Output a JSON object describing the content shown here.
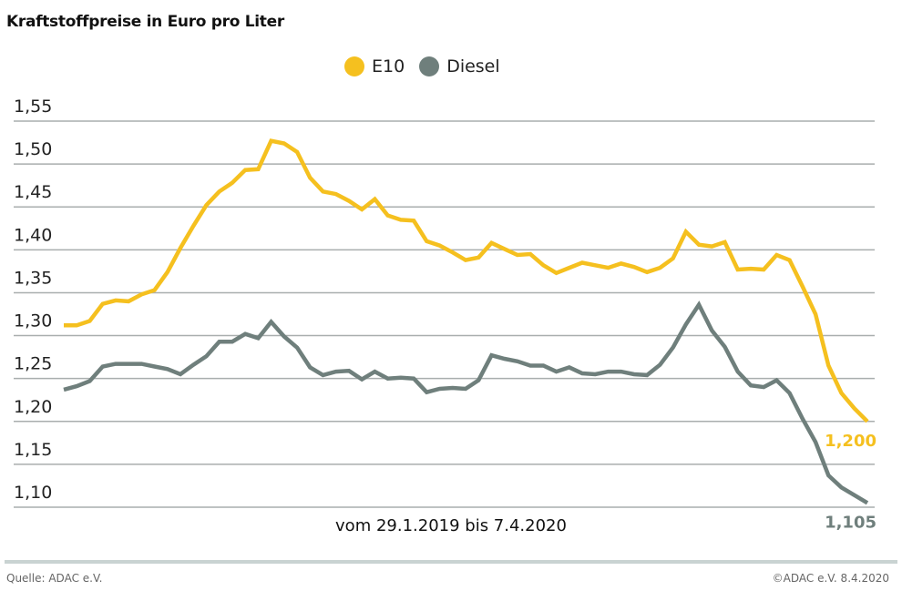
{
  "header": {
    "title": "Kraftstoffpreise in Euro pro Liter"
  },
  "legend": {
    "placement": "top-center",
    "items": [
      {
        "label": "E10",
        "color": "#f5c01f",
        "icon": "circle-dot"
      },
      {
        "label": "Diesel",
        "color": "#6f7f7c",
        "icon": "circle-dot"
      }
    ]
  },
  "subtitle": "vom 29.1.2019 bis 7.4.2020",
  "footer": {
    "source": "Quelle: ADAC e.V.",
    "copyright": "©ADAC e.V. 8.4.2020"
  },
  "colors": {
    "e10": "#f5c01f",
    "diesel": "#6f7f7c",
    "grid": "#a9aeae",
    "footer_rule": "#c9d3d2"
  },
  "chart_data": {
    "type": "line",
    "title": "Kraftstoffpreise in Euro pro Liter",
    "xlabel": "vom 29.1.2019 bis 7.4.2020",
    "ylabel": "Euro pro Liter",
    "x_start": "29.1.2019",
    "x_end": "7.4.2020",
    "x_unit": "week",
    "ylim": [
      1.1,
      1.55
    ],
    "yticks": [
      1.1,
      1.15,
      1.2,
      1.25,
      1.3,
      1.35,
      1.4,
      1.45,
      1.5,
      1.55
    ],
    "ytick_labels": [
      "1,10",
      "1,15",
      "1,20",
      "1,25",
      "1,30",
      "1,35",
      "1,40",
      "1,45",
      "1,50",
      "1,55"
    ],
    "grid": true,
    "legend_position": "top-center",
    "series": [
      {
        "name": "E10",
        "color": "#f5c01f",
        "end_label": "1,200",
        "values": [
          1.312,
          1.312,
          1.317,
          1.337,
          1.341,
          1.34,
          1.348,
          1.353,
          1.374,
          1.402,
          1.428,
          1.452,
          1.468,
          1.478,
          1.493,
          1.494,
          1.527,
          1.524,
          1.514,
          1.484,
          1.468,
          1.465,
          1.457,
          1.447,
          1.459,
          1.44,
          1.435,
          1.434,
          1.41,
          1.405,
          1.397,
          1.388,
          1.391,
          1.408,
          1.401,
          1.394,
          1.395,
          1.382,
          1.373,
          1.379,
          1.385,
          1.382,
          1.379,
          1.384,
          1.38,
          1.374,
          1.379,
          1.39,
          1.421,
          1.406,
          1.404,
          1.409,
          1.377,
          1.378,
          1.377,
          1.394,
          1.388,
          1.357,
          1.325,
          1.265,
          1.233,
          1.215,
          1.2
        ]
      },
      {
        "name": "Diesel",
        "color": "#6f7f7c",
        "end_label": "1,105",
        "values": [
          1.237,
          1.241,
          1.247,
          1.264,
          1.267,
          1.267,
          1.267,
          1.264,
          1.261,
          1.255,
          1.266,
          1.276,
          1.293,
          1.293,
          1.302,
          1.297,
          1.316,
          1.299,
          1.286,
          1.263,
          1.254,
          1.258,
          1.259,
          1.249,
          1.258,
          1.25,
          1.251,
          1.25,
          1.234,
          1.238,
          1.239,
          1.238,
          1.248,
          1.277,
          1.273,
          1.27,
          1.265,
          1.265,
          1.258,
          1.263,
          1.256,
          1.255,
          1.258,
          1.258,
          1.255,
          1.254,
          1.266,
          1.286,
          1.313,
          1.336,
          1.306,
          1.287,
          1.258,
          1.242,
          1.24,
          1.248,
          1.233,
          1.203,
          1.176,
          1.137,
          1.123,
          1.114,
          1.105
        ]
      }
    ]
  }
}
